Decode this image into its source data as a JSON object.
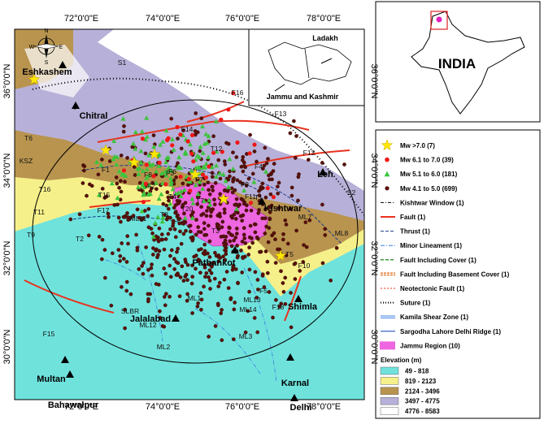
{
  "map": {
    "axis_labels": {
      "lon": [
        "72°0'0\"E",
        "74°0'0\"E",
        "76°0'0\"E",
        "78°0'0\"E"
      ],
      "lat": [
        "36°0'0\"N",
        "34°0'0\"N",
        "32°0'0\"N",
        "30°0'0\"N"
      ]
    },
    "places": [
      "Eshkashem",
      "Chitral",
      "Leh",
      "Kishtwar",
      "Pathankot",
      "Jalalabad",
      "Multan",
      "Bahawalpur",
      "Karnal",
      "Delhi",
      "Shimla"
    ],
    "features": [
      "F1",
      "F2",
      "F3",
      "F4",
      "F5",
      "F6",
      "F7",
      "F8",
      "F9",
      "F10",
      "F11",
      "F12",
      "F13",
      "F14",
      "F15",
      "F16",
      "F17",
      "F18",
      "T1",
      "T2",
      "T3",
      "T4",
      "T5",
      "T6",
      "T7",
      "T8",
      "T9",
      "T11",
      "T12",
      "T15",
      "T16",
      "T20",
      "KSZ",
      "SLBR",
      "S1",
      "S2",
      "ML1",
      "ML2",
      "ML3",
      "ML7",
      "ML8",
      "ML11",
      "ML12",
      "ML13",
      "ML14"
    ],
    "inset_labels": [
      "Ladakh",
      "Jammu and Kashmir"
    ],
    "compass": [
      "N",
      "E",
      "S",
      "W"
    ],
    "overview_label": "INDIA",
    "legend": {
      "items": [
        "Mw >7.0 (7)",
        "Mw 6.1 to 7.0 (39)",
        "Mw 5.1 to 6.0 (181)",
        "Mw 4.1 to 5.0 (699)",
        "Kishtwar Window (1)",
        "Fault (1)",
        "Thrust (1)",
        "Minor Lineament (1)",
        "Fault Including Cover (1)",
        "Fault Including Basement Cover (1)",
        "Neotectonic Fault (1)",
        "Suture (1)",
        "Kamila Shear Zone (1)",
        "Sargodha Lahore Delhi Ridge (1)",
        "Jammu Region (10)"
      ],
      "elevation_title": "Elevation (m)",
      "elevation_classes": [
        "49 - 818",
        "819 - 2123",
        "2124 - 3496",
        "3497 - 4775",
        "4776 - 8583"
      ]
    }
  }
}
